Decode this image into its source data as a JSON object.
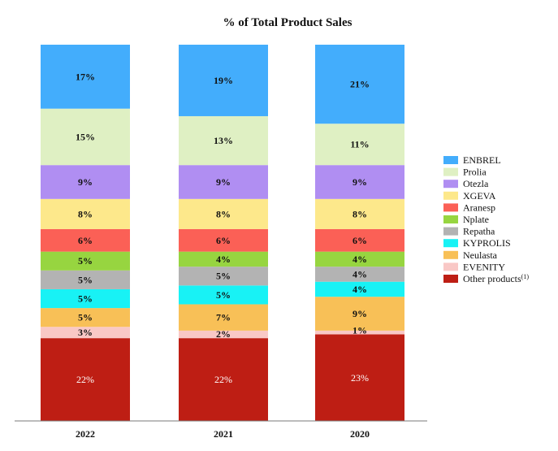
{
  "chart_data": {
    "type": "bar",
    "stacked": true,
    "title": "% of Total Product Sales",
    "unit": "%",
    "categories": [
      "2022",
      "2021",
      "2020"
    ],
    "legend_position": "right",
    "series": [
      {
        "name": "Other products",
        "superscript": "(1)",
        "color": "#be1e14",
        "values": [
          22,
          22,
          23
        ],
        "labels": [
          "22%",
          "22%",
          "23%"
        ]
      },
      {
        "name": "EVENITY",
        "color": "#f9c8c6",
        "values": [
          3,
          2,
          1
        ],
        "labels": [
          "3%",
          "2%",
          "1%"
        ]
      },
      {
        "name": "Neulasta",
        "color": "#f8c057",
        "values": [
          5,
          7,
          9
        ],
        "labels": [
          "5%",
          "7%",
          "9%"
        ]
      },
      {
        "name": "KYPROLIS",
        "color": "#18f2f5",
        "values": [
          5,
          5,
          4
        ],
        "labels": [
          "5%",
          "5%",
          "4%"
        ]
      },
      {
        "name": "Repatha",
        "color": "#b3b3b3",
        "values": [
          5,
          5,
          4
        ],
        "labels": [
          "5%",
          "5%",
          "4%"
        ]
      },
      {
        "name": "Nplate",
        "color": "#97d540",
        "values": [
          5,
          4,
          4
        ],
        "labels": [
          "5%",
          "4%",
          "4%"
        ]
      },
      {
        "name": "Aranesp",
        "color": "#fb6056",
        "values": [
          6,
          6,
          6
        ],
        "labels": [
          "6%",
          "6%",
          "6%"
        ]
      },
      {
        "name": "XGEVA",
        "color": "#fde88b",
        "values": [
          8,
          8,
          8
        ],
        "labels": [
          "8%",
          "8%",
          "8%"
        ]
      },
      {
        "name": "Otezla",
        "color": "#b08ef2",
        "values": [
          9,
          9,
          9
        ],
        "labels": [
          "9%",
          "9%",
          "9%"
        ]
      },
      {
        "name": "Prolia",
        "color": "#dff0c3",
        "values": [
          15,
          13,
          11
        ],
        "labels": [
          "15%",
          "13%",
          "11%"
        ]
      },
      {
        "name": "ENBREL",
        "color": "#43adfc",
        "values": [
          17,
          19,
          21
        ],
        "labels": [
          "17%",
          "19%",
          "21%"
        ]
      }
    ],
    "legend_order": [
      "ENBREL",
      "Prolia",
      "Otezla",
      "XGEVA",
      "Aranesp",
      "Nplate",
      "Repatha",
      "KYPROLIS",
      "Neulasta",
      "EVENITY",
      "Other products"
    ]
  }
}
